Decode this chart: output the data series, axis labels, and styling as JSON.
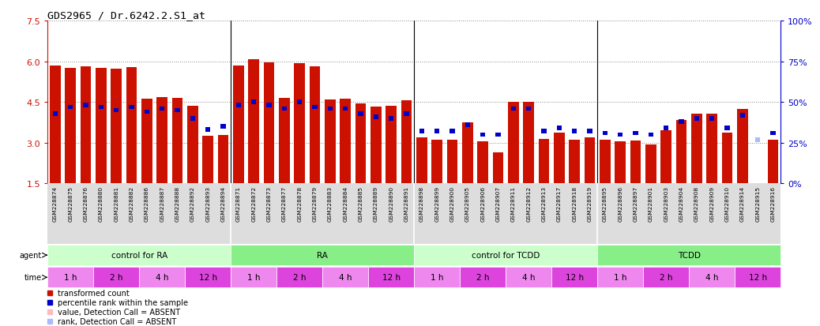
{
  "title": "GDS2965 / Dr.6242.2.S1_at",
  "samples": [
    "GSM228874",
    "GSM228875",
    "GSM228876",
    "GSM228880",
    "GSM228881",
    "GSM228882",
    "GSM228886",
    "GSM228887",
    "GSM228888",
    "GSM228892",
    "GSM228893",
    "GSM228894",
    "GSM228871",
    "GSM228872",
    "GSM228873",
    "GSM228877",
    "GSM228878",
    "GSM228879",
    "GSM228883",
    "GSM228884",
    "GSM228885",
    "GSM228889",
    "GSM228890",
    "GSM228891",
    "GSM228898",
    "GSM228899",
    "GSM228900",
    "GSM228905",
    "GSM228906",
    "GSM228907",
    "GSM228911",
    "GSM228912",
    "GSM228913",
    "GSM228917",
    "GSM228918",
    "GSM228919",
    "GSM228895",
    "GSM228896",
    "GSM228897",
    "GSM228901",
    "GSM228903",
    "GSM228904",
    "GSM228908",
    "GSM228909",
    "GSM228910",
    "GSM228914",
    "GSM228915",
    "GSM228916"
  ],
  "red_values": [
    5.85,
    5.75,
    5.82,
    5.75,
    5.72,
    5.78,
    4.62,
    4.68,
    4.65,
    4.35,
    3.25,
    3.3,
    5.85,
    6.08,
    5.95,
    4.65,
    5.92,
    5.8,
    4.6,
    4.62,
    4.45,
    4.32,
    4.35,
    4.55,
    3.2,
    3.1,
    3.12,
    3.75,
    3.05,
    2.65,
    4.52,
    4.52,
    3.15,
    3.38,
    3.12,
    3.2,
    3.1,
    3.05,
    3.08,
    2.95,
    3.45,
    3.85,
    4.08,
    4.08,
    3.38,
    4.25,
    1.05,
    3.1
  ],
  "blue_pct": [
    43,
    47,
    48,
    47,
    45,
    47,
    44,
    46,
    45,
    40,
    33,
    35,
    48,
    50,
    48,
    46,
    50,
    47,
    46,
    46,
    43,
    41,
    40,
    43,
    32,
    32,
    32,
    36,
    30,
    30,
    46,
    46,
    32,
    34,
    32,
    32,
    31,
    30,
    31,
    30,
    34,
    38,
    40,
    40,
    34,
    42,
    27,
    31
  ],
  "absent_flags": [
    false,
    false,
    false,
    false,
    false,
    false,
    false,
    false,
    false,
    false,
    false,
    false,
    false,
    false,
    false,
    false,
    false,
    false,
    false,
    false,
    false,
    false,
    false,
    false,
    false,
    false,
    false,
    false,
    false,
    false,
    false,
    false,
    false,
    false,
    false,
    false,
    false,
    false,
    false,
    false,
    false,
    false,
    false,
    false,
    false,
    false,
    true,
    false
  ],
  "agent_groups": [
    {
      "label": "control for RA",
      "start": 0,
      "end": 12,
      "color": "#ccffcc"
    },
    {
      "label": "RA",
      "start": 12,
      "end": 24,
      "color": "#88ee88"
    },
    {
      "label": "control for TCDD",
      "start": 24,
      "end": 36,
      "color": "#ccffcc"
    },
    {
      "label": "TCDD",
      "start": 36,
      "end": 48,
      "color": "#88ee88"
    }
  ],
  "time_groups": [
    {
      "label": "1 h",
      "start": 0,
      "end": 3,
      "color": "#ee88ee"
    },
    {
      "label": "2 h",
      "start": 3,
      "end": 6,
      "color": "#dd44dd"
    },
    {
      "label": "4 h",
      "start": 6,
      "end": 9,
      "color": "#ee88ee"
    },
    {
      "label": "12 h",
      "start": 9,
      "end": 12,
      "color": "#dd44dd"
    },
    {
      "label": "1 h",
      "start": 12,
      "end": 15,
      "color": "#ee88ee"
    },
    {
      "label": "2 h",
      "start": 15,
      "end": 18,
      "color": "#dd44dd"
    },
    {
      "label": "4 h",
      "start": 18,
      "end": 21,
      "color": "#ee88ee"
    },
    {
      "label": "12 h",
      "start": 21,
      "end": 24,
      "color": "#dd44dd"
    },
    {
      "label": "1 h",
      "start": 24,
      "end": 27,
      "color": "#ee88ee"
    },
    {
      "label": "2 h",
      "start": 27,
      "end": 30,
      "color": "#dd44dd"
    },
    {
      "label": "4 h",
      "start": 30,
      "end": 33,
      "color": "#ee88ee"
    },
    {
      "label": "12 h",
      "start": 33,
      "end": 36,
      "color": "#dd44dd"
    },
    {
      "label": "1 h",
      "start": 36,
      "end": 39,
      "color": "#ee88ee"
    },
    {
      "label": "2 h",
      "start": 39,
      "end": 42,
      "color": "#dd44dd"
    },
    {
      "label": "4 h",
      "start": 42,
      "end": 45,
      "color": "#ee88ee"
    },
    {
      "label": "12 h",
      "start": 45,
      "end": 48,
      "color": "#dd44dd"
    }
  ],
  "ylim_left": [
    1.5,
    7.5
  ],
  "yticks_left": [
    1.5,
    3.0,
    4.5,
    6.0,
    7.5
  ],
  "ylim_right": [
    0,
    100
  ],
  "yticks_right": [
    0,
    25,
    50,
    75,
    100
  ],
  "bar_color": "#cc1100",
  "blue_color": "#0000cc",
  "absent_bar_color": "#ffbbbb",
  "absent_rank_color": "#aabbff",
  "grid_color": "#888888",
  "right_axis_color": "#0000cc",
  "left_axis_color": "#cc1100",
  "sample_bg": "#dddddd",
  "group_boundary_color": "#000000",
  "legend_items": [
    {
      "color": "#cc1100",
      "label": "transformed count"
    },
    {
      "color": "#0000cc",
      "label": "percentile rank within the sample"
    },
    {
      "color": "#ffbbbb",
      "label": "value, Detection Call = ABSENT"
    },
    {
      "color": "#aabbff",
      "label": "rank, Detection Call = ABSENT"
    }
  ]
}
